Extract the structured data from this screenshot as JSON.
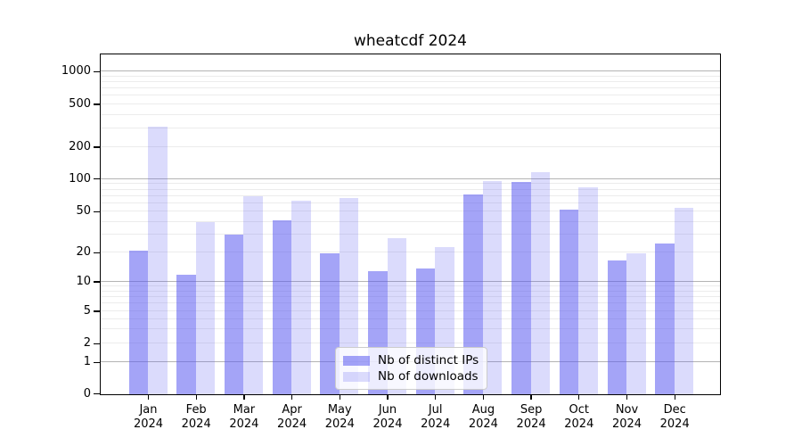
{
  "chart_data": {
    "type": "bar",
    "title": "wheatcdf 2024",
    "categories": [
      "Jan",
      "Feb",
      "Mar",
      "Apr",
      "May",
      "Jun",
      "Jul",
      "Aug",
      "Sep",
      "Oct",
      "Nov",
      "Dec"
    ],
    "year": "2024",
    "series": [
      {
        "name": "Nb of distinct IPs",
        "base_color": "#5a5af0",
        "alpha": 0.55,
        "values": [
          21,
          12,
          30,
          42,
          20,
          13,
          14,
          73,
          95,
          53,
          17,
          25
        ]
      },
      {
        "name": "Nb of downloads",
        "base_color": "#5a5af0",
        "alpha": 0.22,
        "values": [
          310,
          40,
          70,
          64,
          68,
          28,
          23,
          97,
          118,
          85,
          20,
          55
        ]
      }
    ],
    "y_axis": {
      "scale": "log",
      "ticks": [
        0,
        1,
        2,
        5,
        10,
        20,
        50,
        100,
        200,
        500,
        1000
      ],
      "tick_labels": [
        "0",
        "1",
        "2",
        "5",
        "10",
        "20",
        "50",
        "100",
        "200",
        "500",
        "1000"
      ]
    },
    "grid": true,
    "legend_position": "lower center"
  }
}
